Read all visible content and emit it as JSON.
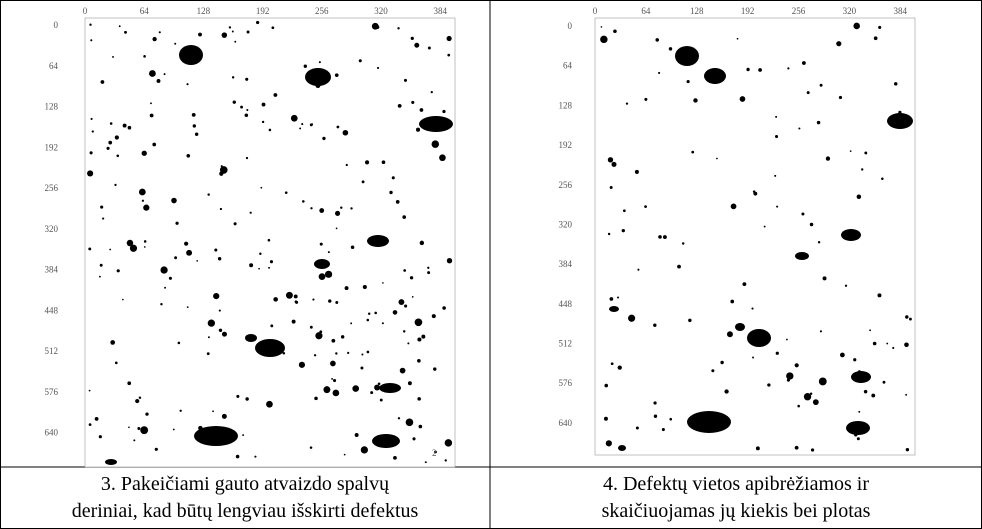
{
  "figures": [
    {
      "x_ticks": [
        0,
        64,
        128,
        192,
        256,
        320,
        384
      ],
      "y_ticks": [
        0,
        64,
        128,
        192,
        256,
        320,
        384,
        448,
        512,
        576,
        640
      ],
      "corner_label": "2",
      "caption": [
        "3. Pakeičiami gauto atvaizdo spalvų",
        "deriniai, kad būtų lengviau išskirti defektus"
      ]
    },
    {
      "x_ticks": [
        0,
        64,
        128,
        192,
        256,
        320,
        384
      ],
      "y_ticks": [
        0,
        64,
        128,
        192,
        256,
        320,
        384,
        448,
        512,
        576,
        640
      ],
      "caption": [
        "4. Defektų vietos apibrėžiamos ir",
        "skaičiuojamas jų kiekis bei plotas"
      ]
    }
  ]
}
